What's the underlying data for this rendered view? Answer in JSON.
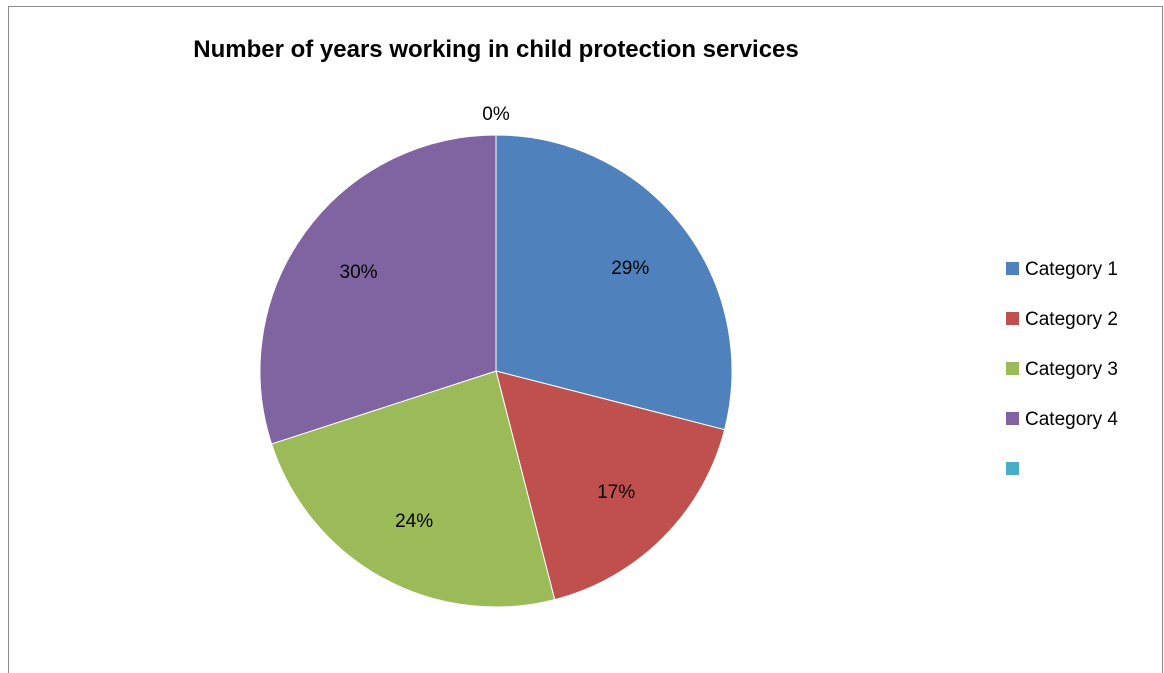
{
  "chart_data": {
    "type": "pie",
    "title": "Number of years working in child protection services",
    "categories": [
      "Category 1",
      "Category 2",
      "Category 3",
      "Category 4",
      ""
    ],
    "values": [
      29,
      17,
      24,
      30,
      0
    ],
    "labels": [
      "29%",
      "17%",
      "24%",
      "30%",
      "0%"
    ],
    "colors": [
      "#4F81BD",
      "#C0504D",
      "#9BBB59",
      "#8064A2",
      "#4BACC6"
    ],
    "legend": "right",
    "start_angle": "12 o'clock",
    "direction": "clockwise"
  }
}
